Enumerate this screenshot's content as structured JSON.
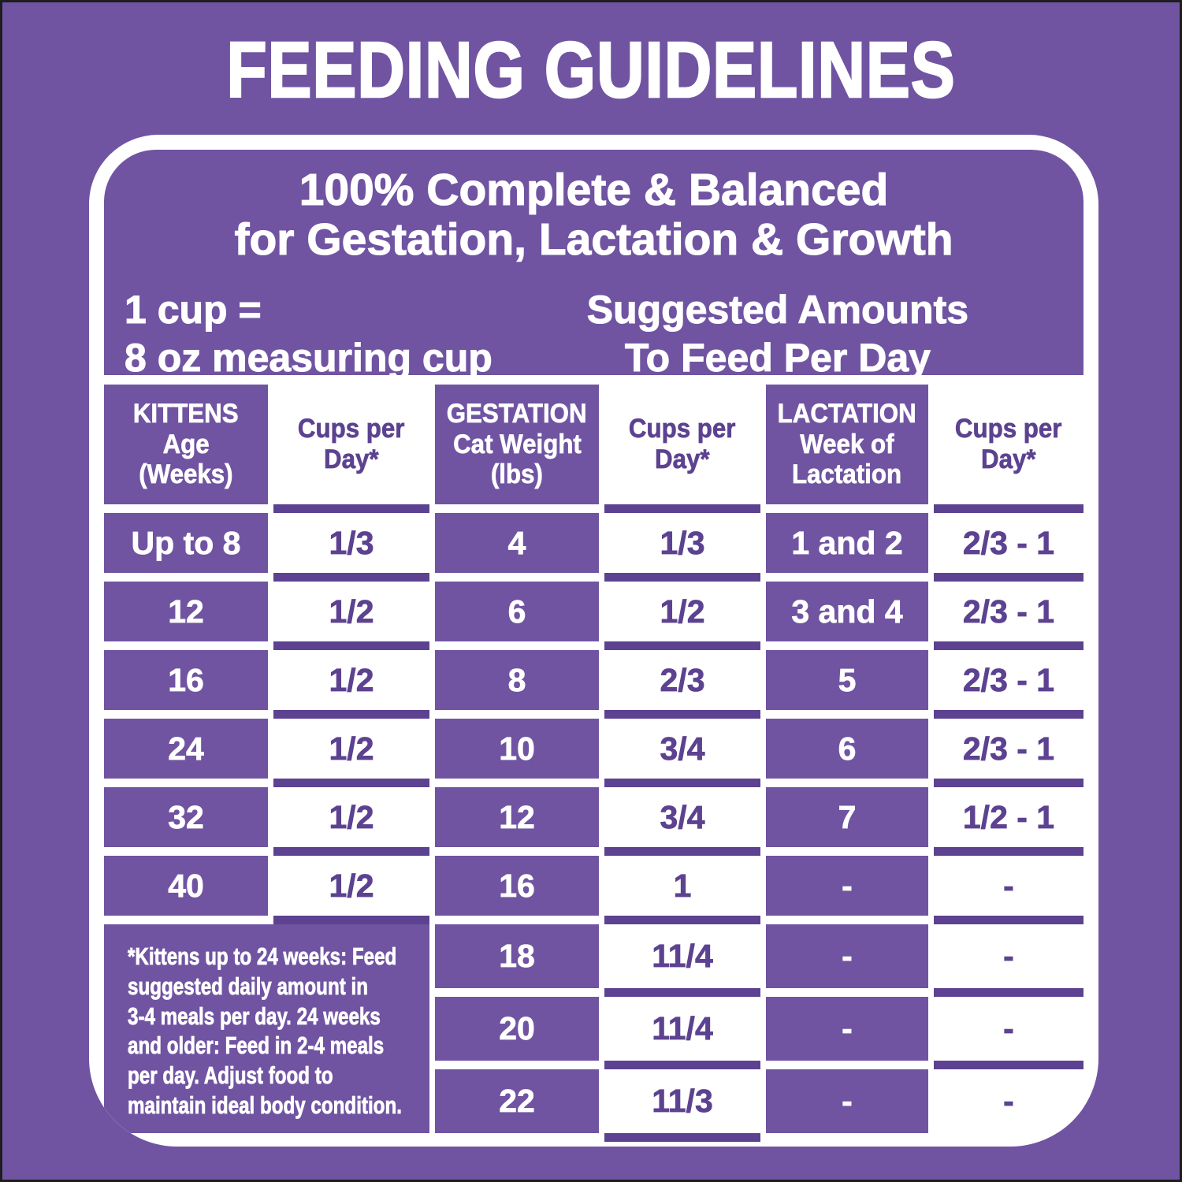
{
  "colors": {
    "background_purple": "#7054A2",
    "cell_purple": "#7054A2",
    "separator_purple": "#5C4290",
    "text_purple": "#5C4290",
    "panel_white": "#FFFFFF",
    "outer_border": "#1E1E1E"
  },
  "title": "FEEDING GUIDELINES",
  "panel": {
    "heading_line1": "100% Complete & Balanced",
    "heading_line2": "for Gestation, Lactation & Growth",
    "cup_note_line1": "1 cup =",
    "cup_note_line2": "8 oz measuring cup",
    "suggested_line1": "Suggested Amounts",
    "suggested_line2": "To Feed Per Day"
  },
  "chart_data": {
    "type": "table",
    "title": "FEEDING GUIDELINES",
    "subtitle": "100% Complete & Balanced for Gestation, Lactation & Growth",
    "columns": [
      {
        "id": "kittens-age-weeks",
        "style": "purple",
        "header_lines": [
          "KITTENS",
          "Age",
          "(Weeks)"
        ]
      },
      {
        "id": "kittens-cups-per-day",
        "style": "white",
        "header_lines": [
          "Cups per",
          "Day*"
        ]
      },
      {
        "id": "gestation-cat-weight-lbs",
        "style": "purple",
        "header_lines": [
          "GESTATION",
          "Cat Weight",
          "(lbs)"
        ]
      },
      {
        "id": "gestation-cups-per-day",
        "style": "white",
        "header_lines": [
          "Cups per",
          "Day*"
        ]
      },
      {
        "id": "lactation-week",
        "style": "purple",
        "header_lines": [
          "LACTATION",
          "Week of",
          "Lactation"
        ]
      },
      {
        "id": "lactation-cups-per-day",
        "style": "white",
        "header_lines": [
          "Cups per",
          "Day*"
        ]
      }
    ],
    "rows": [
      [
        "Up to 8",
        "1/3",
        "4",
        "1/3",
        "1 and 2",
        "2/3 - 1"
      ],
      [
        "12",
        "1/2",
        "6",
        "1/2",
        "3 and 4",
        "2/3 - 1"
      ],
      [
        "16",
        "1/2",
        "8",
        "2/3",
        "5",
        "2/3 - 1"
      ],
      [
        "24",
        "1/2",
        "10",
        "3/4",
        "6",
        "2/3 - 1"
      ],
      [
        "32",
        "1/2",
        "12",
        "3/4",
        "7",
        "1/2 - 1"
      ],
      [
        "40",
        "1/2",
        "16",
        "1",
        "-",
        "-"
      ],
      [
        null,
        null,
        "18",
        "11/4",
        "-",
        "-"
      ],
      [
        null,
        null,
        "20",
        "11/4",
        "-",
        "-"
      ],
      [
        null,
        null,
        "22",
        "11/3",
        "-",
        "-"
      ]
    ],
    "footnote_lines": [
      "*Kittens up to 24 weeks: Feed",
      "suggested daily amount in",
      "3-4 meals per day. 24 weeks",
      "and older: Feed in 2-4 meals",
      "per day. Adjust food to",
      "maintain ideal body condition."
    ]
  }
}
